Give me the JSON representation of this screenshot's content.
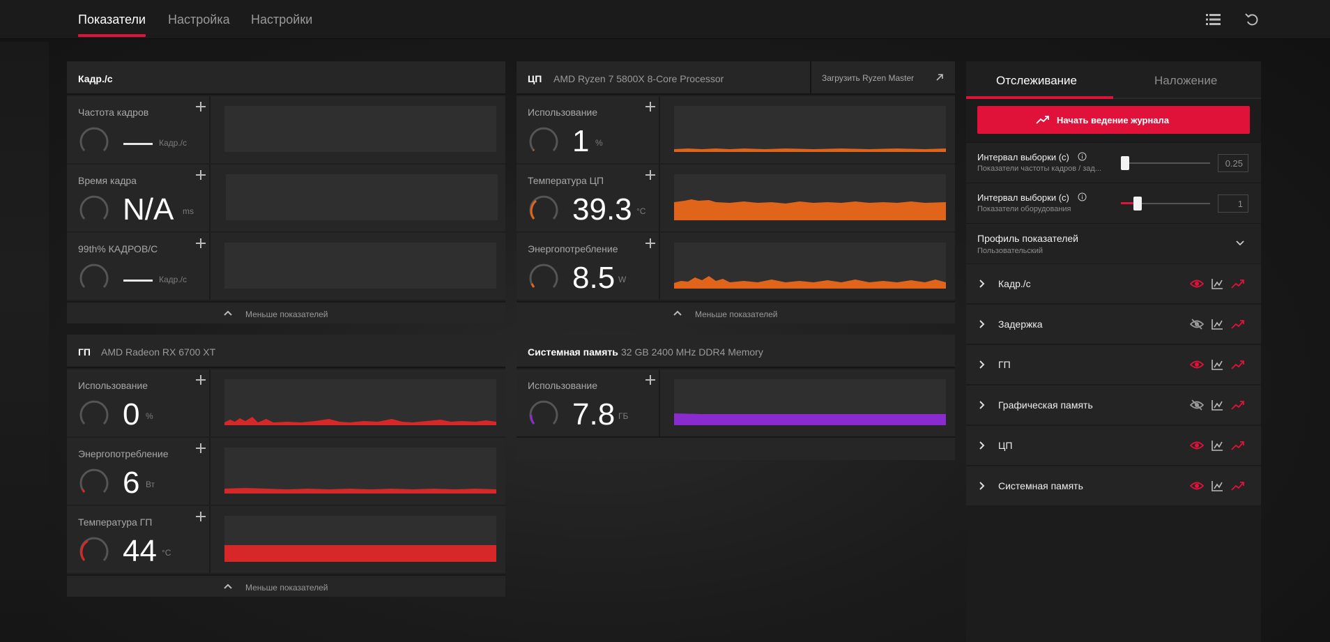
{
  "nav": {
    "tabs": [
      "Показатели",
      "Настройка",
      "Настройки"
    ]
  },
  "fps_panel": {
    "title": "Кадр./с",
    "rows": [
      {
        "label": "Частота кадров",
        "value": "",
        "unit": "Кадр./с"
      },
      {
        "label": "Время кадра",
        "value": "N/A",
        "unit": "ms"
      },
      {
        "label": "99th% КАДРОВ/С",
        "value": "",
        "unit": "Кадр./с"
      }
    ],
    "footer": "Меньше показателей"
  },
  "cpu_panel": {
    "title": "ЦП",
    "subtitle": "AMD Ryzen 7 5800X 8-Core Processor",
    "download_label": "Загрузить Ryzen Master",
    "rows": [
      {
        "label": "Использование",
        "value": "1",
        "unit": "%"
      },
      {
        "label": "Температура ЦП",
        "value": "39.3",
        "unit": "°C"
      },
      {
        "label": "Энергопотребление",
        "value": "8.5",
        "unit": "W"
      }
    ],
    "footer": "Меньше показателей"
  },
  "gpu_panel": {
    "title": "ГП",
    "subtitle": "AMD Radeon RX 6700 XT",
    "rows": [
      {
        "label": "Использование",
        "value": "0",
        "unit": "%"
      },
      {
        "label": "Энергопотребление",
        "value": "6",
        "unit": "Вт"
      },
      {
        "label": "Температура ГП",
        "value": "44",
        "unit": "°C"
      }
    ],
    "footer": "Меньше показателей"
  },
  "mem_panel": {
    "title": "Системная память",
    "subtitle": "32 GB 2400 MHz DDR4 Memory",
    "rows": [
      {
        "label": "Использование",
        "value": "7.8",
        "unit": "ГБ"
      }
    ]
  },
  "sidebar": {
    "tabs": [
      "Отслеживание",
      "Наложение"
    ],
    "log_button": "Начать ведение журнала",
    "interval_fps": {
      "label": "Интервал выборки (с)",
      "sub": "Показатели частоты кадров / зад...",
      "value": "0.25",
      "slider_fraction": 0.0
    },
    "interval_hw": {
      "label": "Интервал выборки (с)",
      "sub": "Показатели оборудования",
      "value": "1",
      "slider_fraction": 0.13
    },
    "profile": {
      "label": "Профиль показателей",
      "value": "Пользовательский"
    },
    "metrics": [
      {
        "name": "Кадр./с",
        "visible": true
      },
      {
        "name": "Задержка",
        "visible": false
      },
      {
        "name": "ГП",
        "visible": true
      },
      {
        "name": "Графическая память",
        "visible": false
      },
      {
        "name": "ЦП",
        "visible": true
      },
      {
        "name": "Системная память",
        "visible": true
      }
    ]
  },
  "colors": {
    "accent": "#e0123a",
    "cpu": "#e0641a",
    "gpu": "#d62828",
    "memory": "#8a2bd0",
    "gauge_track": "#555555"
  }
}
